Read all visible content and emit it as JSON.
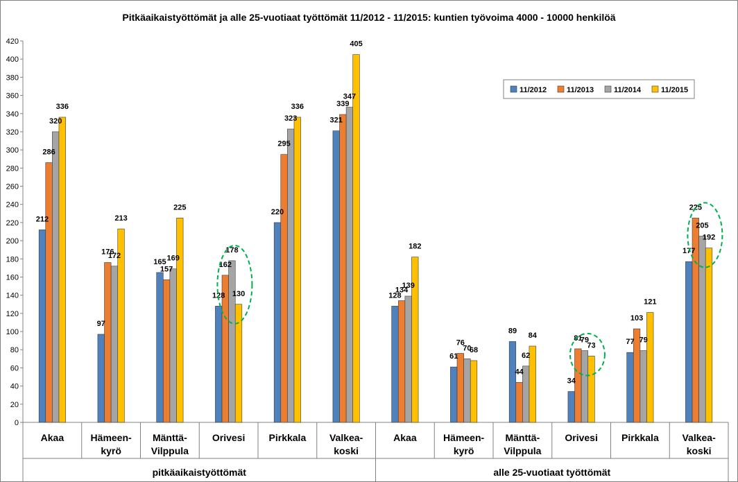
{
  "chart_data": {
    "type": "bar",
    "title": "Pitkäaikaistyöttömät ja alle 25-vuotiaat työttömät 11/2012 - 11/2015: kuntien työvoima 4000 - 10000 henkilöä",
    "ylim": [
      0,
      420
    ],
    "ytick_step": 20,
    "grid": false,
    "legend_position": "top-right",
    "groups": [
      {
        "label": "pitkäaikaistyöttömät",
        "categories": [
          [
            "Akaa"
          ],
          [
            "Hämeen-",
            "kyrö"
          ],
          [
            "Mänttä-",
            "Vilppula"
          ],
          [
            "Orivesi"
          ],
          [
            "Pirkkala"
          ],
          [
            "Valkea-",
            "koski"
          ]
        ]
      },
      {
        "label": "alle 25-vuotiaat työttömät",
        "categories": [
          [
            "Akaa"
          ],
          [
            "Hämeen-",
            "kyrö"
          ],
          [
            "Mänttä-",
            "Vilppula"
          ],
          [
            "Orivesi"
          ],
          [
            "Pirkkala"
          ],
          [
            "Valkea-",
            "koski"
          ]
        ]
      }
    ],
    "series": [
      {
        "name": "11/2012",
        "color": "#4F81BD",
        "values": [
          212,
          97,
          165,
          128,
          220,
          321,
          128,
          61,
          89,
          34,
          77,
          177
        ]
      },
      {
        "name": "11/2013",
        "color": "#ED7D31",
        "values": [
          286,
          176,
          157,
          162,
          295,
          339,
          134,
          76,
          44,
          81,
          103,
          225
        ]
      },
      {
        "name": "11/2014",
        "color": "#A5A5A5",
        "values": [
          320,
          172,
          169,
          178,
          323,
          347,
          139,
          70,
          62,
          79,
          79,
          205
        ]
      },
      {
        "name": "11/2015",
        "color": "#FFC000",
        "values": [
          336,
          213,
          225,
          130,
          336,
          405,
          182,
          68,
          84,
          73,
          121,
          192
        ]
      }
    ],
    "highlight_circles": [
      {
        "category_index": 3,
        "series": [
          "11/2013",
          "11/2014",
          "11/2015"
        ],
        "color": "#00B050"
      },
      {
        "category_index": 9,
        "series": [
          "11/2013",
          "11/2014",
          "11/2015"
        ],
        "color": "#00B050"
      },
      {
        "category_index": 11,
        "series": [
          "11/2013",
          "11/2014",
          "11/2015"
        ],
        "color": "#00B050"
      }
    ]
  }
}
